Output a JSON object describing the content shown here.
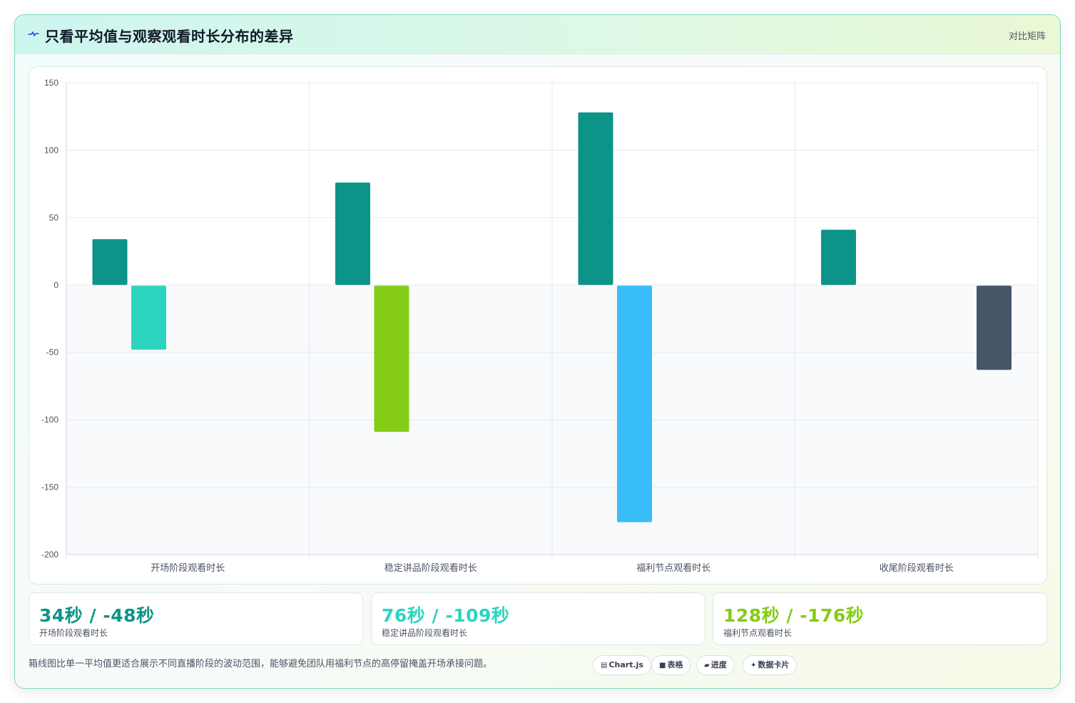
{
  "header": {
    "title": "只看平均值与观察观看时长分布的差异",
    "right_label": "对比矩阵",
    "icon": "pulse-icon"
  },
  "chart_data": {
    "type": "bar",
    "categories": [
      "开场阶段观看时长",
      "稳定讲品阶段观看时长",
      "福利节点观看时长",
      "收尾阶段观看时长"
    ],
    "series": [
      {
        "values": [
          34,
          76,
          128,
          41
        ]
      },
      {
        "values": [
          -48,
          -109,
          -176,
          -63
        ]
      }
    ],
    "negative_bar_colors": [
      "#2dd4bf",
      "#84cc16",
      "#38bdf8",
      "#475569"
    ],
    "positive_bar_color": "#0d9488",
    "ylim": [
      -200,
      150
    ],
    "yticks": [
      150,
      100,
      50,
      0,
      -50,
      -100,
      -150,
      -200
    ],
    "grid": true,
    "title": "",
    "xlabel": "",
    "ylabel": ""
  },
  "stats": [
    {
      "value": "34秒 / -48秒",
      "label": "开场阶段观看时长",
      "color": "#0d9488"
    },
    {
      "value": "76秒 / -109秒",
      "label": "稳定讲品阶段观看时长",
      "color": "#2dd4bf"
    },
    {
      "value": "128秒 / -176秒",
      "label": "福利节点观看时长",
      "color": "#84cc16"
    }
  ],
  "footnote": "箱线图比单一平均值更适合展示不同直播阶段的波动范围，能够避免团队用福利节点的高停留掩盖开场承接问题。",
  "tags": [
    {
      "icon": "chart-icon",
      "glyph": "▤",
      "label": "Chart.js"
    },
    {
      "icon": "table-icon",
      "glyph": "■",
      "label": "表格"
    },
    {
      "icon": "progress-icon",
      "glyph": "▰",
      "label": "进度"
    },
    {
      "icon": "card-icon",
      "glyph": "✦",
      "label": "数据卡片"
    }
  ]
}
